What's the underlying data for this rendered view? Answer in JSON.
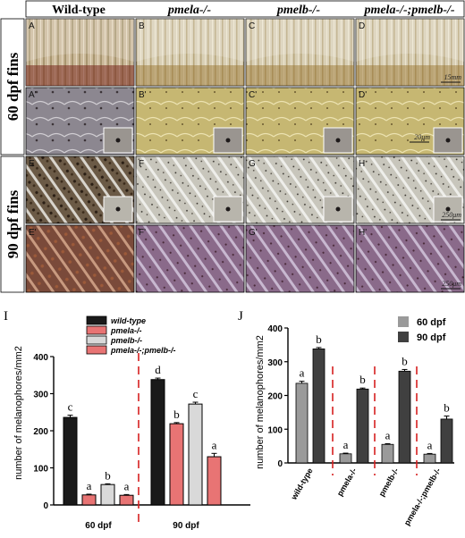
{
  "column_headers": [
    "Wild-type",
    "pmela-/-",
    "pmelb-/-",
    "pmela-/-;pmelb-/-"
  ],
  "row_labels": [
    "60 dpf fins",
    "90 dpf fins"
  ],
  "panel_labels": [
    [
      "A",
      "B",
      "C",
      "D"
    ],
    [
      "A'",
      "B'",
      "C'",
      "D'"
    ],
    [
      "E",
      "F",
      "G",
      "H"
    ],
    [
      "E'",
      "F'",
      "G'",
      "H'"
    ]
  ],
  "scale_bars": [
    "15mm",
    "20μm",
    "250μm",
    "250μm"
  ],
  "chart_data": [
    {
      "panel": "I",
      "type": "bar",
      "ylabel": "number of melanophores/mm2",
      "ylim": [
        0,
        400
      ],
      "yticks": [
        0,
        100,
        200,
        300,
        400
      ],
      "groups": [
        "60 dpf",
        "90 dpf"
      ],
      "series": [
        {
          "name": "wild-type",
          "color": "#1a1a1a",
          "values": [
            236,
            338
          ],
          "errors": [
            6,
            4
          ],
          "letters": [
            "c",
            "d"
          ]
        },
        {
          "name": "pmela-/-",
          "color": "#e87474",
          "values": [
            27,
            219
          ],
          "errors": [
            2,
            3
          ],
          "letters": [
            "a",
            "b"
          ]
        },
        {
          "name": "pmelb-/-",
          "color": "#d9d9d9",
          "values": [
            55,
            272
          ],
          "errors": [
            2,
            5
          ],
          "letters": [
            "b",
            "c"
          ]
        },
        {
          "name": "pmela-/-;pmelb-/-",
          "color": "#e87474",
          "values": [
            26,
            130
          ],
          "errors": [
            2,
            9
          ],
          "letters": [
            "a",
            "a"
          ]
        }
      ],
      "legend_position": "top-center"
    },
    {
      "panel": "J",
      "type": "bar",
      "ylabel": "number of melanophores/mm2",
      "ylim": [
        0,
        400
      ],
      "yticks": [
        0,
        100,
        200,
        300,
        400
      ],
      "categories": [
        "wild-type",
        "pmela-/-",
        "pmelb-/-",
        "pmela-/-;pmelb-/-"
      ],
      "series": [
        {
          "name": "60 dpf",
          "color": "#9a9a9a",
          "values": [
            236,
            27,
            55,
            26
          ],
          "errors": [
            6,
            2,
            2,
            2
          ],
          "letters": [
            "a",
            "a",
            "a",
            "a"
          ]
        },
        {
          "name": "90 dpf",
          "color": "#404040",
          "values": [
            338,
            219,
            272,
            130
          ],
          "errors": [
            4,
            3,
            5,
            9
          ],
          "letters": [
            "b",
            "b",
            "b",
            "b"
          ]
        }
      ],
      "legend_position": "top-right"
    }
  ]
}
